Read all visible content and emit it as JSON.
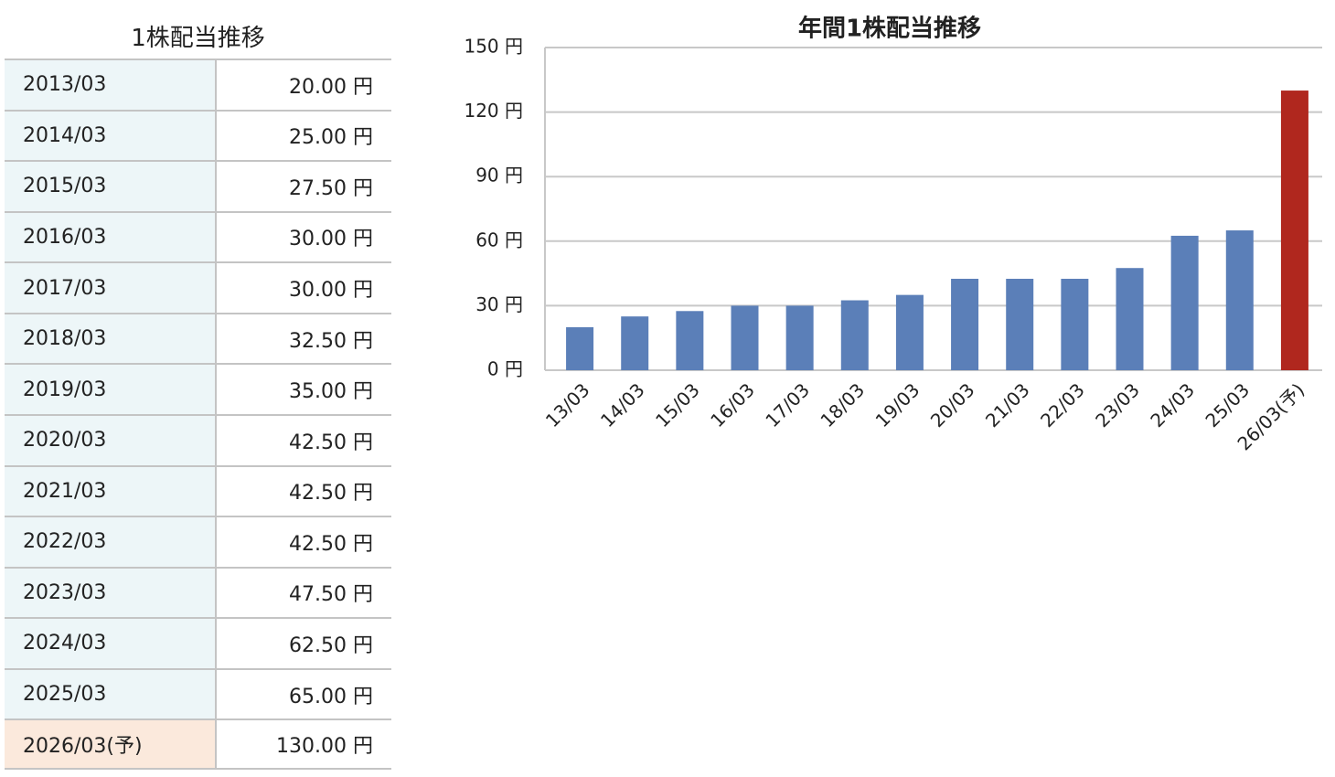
{
  "table": {
    "title": "1株配当推移",
    "rows": [
      [
        "2013/03",
        "20.00 円"
      ],
      [
        "2014/03",
        "25.00 円"
      ],
      [
        "2015/03",
        "27.50 円"
      ],
      [
        "2016/03",
        "30.00 円"
      ],
      [
        "2017/03",
        "30.00 円"
      ],
      [
        "2018/03",
        "32.50 円"
      ],
      [
        "2019/03",
        "35.00 円"
      ],
      [
        "2020/03",
        "42.50 円"
      ],
      [
        "2021/03",
        "42.50 円"
      ],
      [
        "2022/03",
        "42.50 円"
      ],
      [
        "2023/03",
        "47.50 円"
      ],
      [
        "2024/03",
        "62.50 円"
      ],
      [
        "2025/03",
        "65.00 円"
      ],
      [
        "2026/03(予)",
        "130.00 円"
      ]
    ]
  },
  "chart_data": {
    "type": "bar",
    "title": "年間1株配当推移",
    "categories": [
      "13/03",
      "14/03",
      "15/03",
      "16/03",
      "17/03",
      "18/03",
      "19/03",
      "20/03",
      "21/03",
      "22/03",
      "23/03",
      "24/03",
      "25/03",
      "26/03(予)"
    ],
    "values": [
      20,
      25,
      27.5,
      30,
      30,
      32.5,
      35,
      42.5,
      42.5,
      42.5,
      47.5,
      62.5,
      65,
      130
    ],
    "colors": [
      "#5b7fb8",
      "#5b7fb8",
      "#5b7fb8",
      "#5b7fb8",
      "#5b7fb8",
      "#5b7fb8",
      "#5b7fb8",
      "#5b7fb8",
      "#5b7fb8",
      "#5b7fb8",
      "#5b7fb8",
      "#5b7fb8",
      "#5b7fb8",
      "#b0271e"
    ],
    "ylim": [
      0,
      150
    ],
    "yticks": [
      {
        "value": 0,
        "label": "0 円"
      },
      {
        "value": 30,
        "label": "30 円"
      },
      {
        "value": 60,
        "label": "60 円"
      },
      {
        "value": 90,
        "label": "90 円"
      },
      {
        "value": 120,
        "label": "120 円"
      },
      {
        "value": 150,
        "label": "150 円"
      }
    ],
    "grid": true
  }
}
